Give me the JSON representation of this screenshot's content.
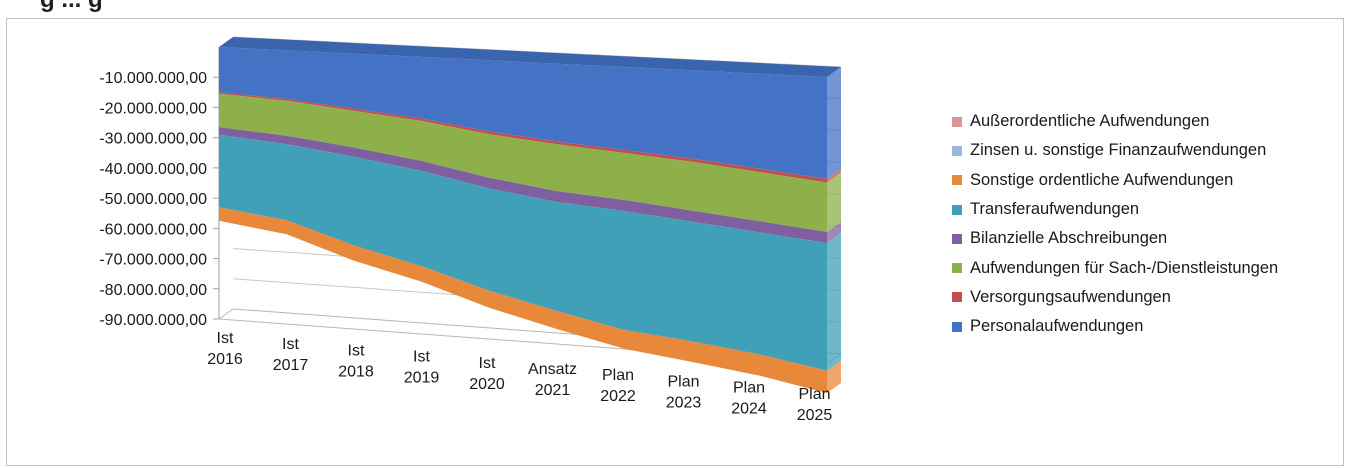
{
  "title_fragment": "g     ...     g",
  "chart_data": {
    "type": "area",
    "subtype": "3d-stacked-area",
    "title": "",
    "xlabel": "",
    "ylabel": "",
    "ylim": [
      -90000000,
      0
    ],
    "y_ticks": [
      "-10.000.000,00",
      "-20.000.000,00",
      "-30.000.000,00",
      "-40.000.000,00",
      "-50.000.000,00",
      "-60.000.000,00",
      "-70.000.000,00",
      "-80.000.000,00",
      "-90.000.000,00"
    ],
    "categories": [
      [
        "Ist",
        "2016"
      ],
      [
        "Ist",
        "2017"
      ],
      [
        "Ist",
        "2018"
      ],
      [
        "Ist",
        "2019"
      ],
      [
        "Ist",
        "2020"
      ],
      [
        "Ansatz",
        "2021"
      ],
      [
        "Plan",
        "2022"
      ],
      [
        "Plan",
        "2023"
      ],
      [
        "Plan",
        "2024"
      ],
      [
        "Plan",
        "2025"
      ]
    ],
    "legend_position": "right",
    "series": [
      {
        "name": "Personalaufwendungen",
        "color": "#4472C4",
        "values": [
          -15000000,
          -16000000,
          -18000000,
          -20000000,
          -23000000,
          -25000000,
          -26500000,
          -28000000,
          -30000000,
          -32000000
        ]
      },
      {
        "name": "Versorgungsaufwendungen",
        "color": "#C0504D",
        "values": [
          -500000,
          -600000,
          -700000,
          -800000,
          -900000,
          -900000,
          -950000,
          -1000000,
          -1050000,
          -1100000
        ]
      },
      {
        "name": "Aufwendungen für Sach-/Dienstleistungen",
        "color": "#8DB04A",
        "values": [
          -11000000,
          -11500000,
          -12000000,
          -13000000,
          -14000000,
          -15000000,
          -15000000,
          -15500000,
          -15500000,
          -15500000
        ]
      },
      {
        "name": "Bilanzielle Abschreibungen",
        "color": "#7F5FA0",
        "values": [
          -2500000,
          -2800000,
          -3000000,
          -3200000,
          -3500000,
          -3500000,
          -3500000,
          -3500000,
          -3500000,
          -3500000
        ]
      },
      {
        "name": "Transferaufwendungen",
        "color": "#3FA0B8",
        "values": [
          -24000000,
          -25000000,
          -29000000,
          -31000000,
          -33000000,
          -35000000,
          -38000000,
          -38000000,
          -38500000,
          -40000000
        ]
      },
      {
        "name": "Sonstige ordentliche Aufwendungen",
        "color": "#E8883A",
        "values": [
          -4500000,
          -4600000,
          -5000000,
          -5000000,
          -5500000,
          -5800000,
          -6000000,
          -6500000,
          -6700000,
          -7000000
        ]
      },
      {
        "name": "Zinsen u. sonstige Finanzaufwendungen",
        "color": "#9AB6DE",
        "values": [
          0,
          0,
          0,
          0,
          0,
          0,
          0,
          0,
          0,
          0
        ]
      },
      {
        "name": "Außerordentliche Aufwendungen",
        "color": "#D99694",
        "values": [
          0,
          0,
          0,
          0,
          0,
          0,
          0,
          0,
          0,
          0
        ]
      }
    ],
    "legend_order": [
      "Außerordentliche Aufwendungen",
      "Zinsen u. sonstige Finanzaufwendungen",
      "Sonstige ordentliche Aufwendungen",
      "Transferaufwendungen",
      "Bilanzielle Abschreibungen",
      "Aufwendungen für Sach-/Dienstleistungen",
      "Versorgungsaufwendungen",
      "Personalaufwendungen"
    ]
  }
}
